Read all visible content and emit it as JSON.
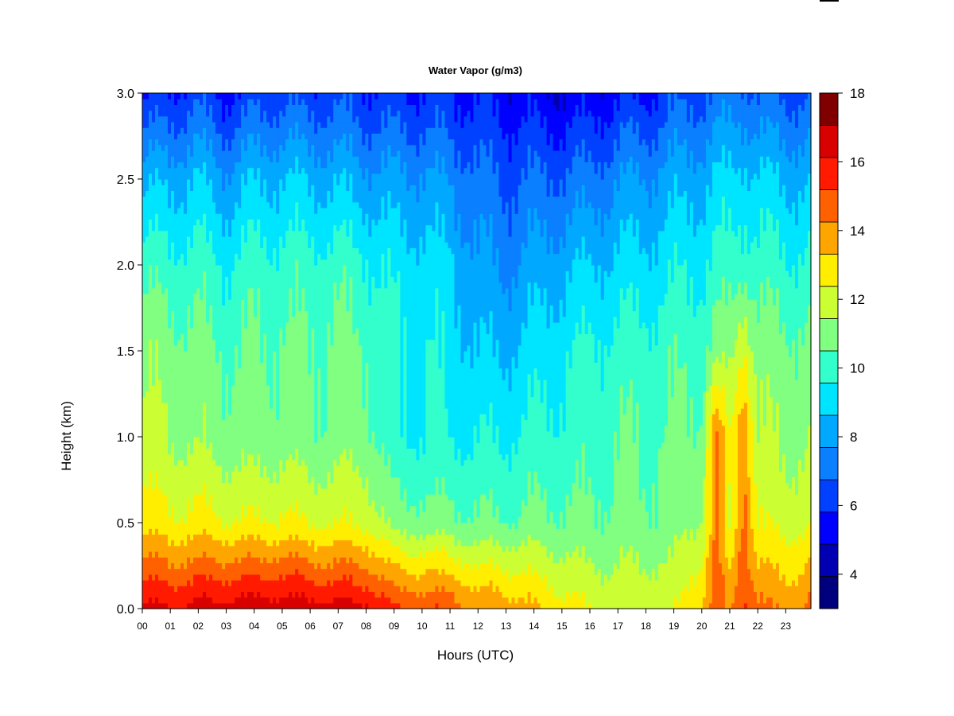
{
  "chart_data": {
    "type": "heatmap",
    "title": "Water Vapor (g/m3)",
    "xlabel": "Hours (UTC)",
    "ylabel": "Height (km)",
    "x_ticks": [
      "00",
      "01",
      "02",
      "03",
      "04",
      "05",
      "06",
      "07",
      "08",
      "09",
      "10",
      "11",
      "12",
      "13",
      "14",
      "15",
      "16",
      "17",
      "18",
      "19",
      "20",
      "21",
      "22",
      "23"
    ],
    "xlim": [
      0,
      23.9
    ],
    "y_ticks": [
      "0.0",
      "0.5",
      "1.0",
      "1.5",
      "2.0",
      "2.5",
      "3.0"
    ],
    "ylim": [
      0,
      3.0
    ],
    "colorbar": {
      "min": 3,
      "max": 18,
      "ticks": [
        "4",
        "6",
        "8",
        "10",
        "12",
        "14",
        "16",
        "18"
      ],
      "colors": [
        "#00007f",
        "#0000b2",
        "#0000ff",
        "#0040ff",
        "#0a7fff",
        "#00a8ff",
        "#00e5ff",
        "#33ffcc",
        "#80ff80",
        "#ccff33",
        "#ffee00",
        "#ffa500",
        "#ff6000",
        "#ff1a00",
        "#d90000",
        "#800000"
      ]
    },
    "profiles": [
      {
        "hour": 0.0,
        "values": [
          16.3,
          13.0,
          11.6,
          11.3,
          10.1,
          8.3,
          5.6
        ]
      },
      {
        "hour": 1.0,
        "values": [
          16.2,
          12.6,
          11.4,
          11.0,
          10.0,
          8.4,
          6.0
        ]
      },
      {
        "hour": 2.0,
        "values": [
          16.4,
          12.7,
          11.2,
          10.8,
          10.0,
          8.6,
          6.3
        ]
      },
      {
        "hour": 3.0,
        "values": [
          16.6,
          12.5,
          11.0,
          10.5,
          9.6,
          8.0,
          5.6
        ]
      },
      {
        "hour": 4.0,
        "values": [
          16.7,
          12.4,
          10.8,
          10.6,
          10.0,
          8.5,
          6.2
        ]
      },
      {
        "hour": 5.0,
        "values": [
          16.8,
          12.6,
          11.0,
          10.7,
          10.0,
          8.7,
          6.4
        ]
      },
      {
        "hour": 6.0,
        "values": [
          16.6,
          12.3,
          10.7,
          10.6,
          10.0,
          8.5,
          6.2
        ]
      },
      {
        "hour": 7.0,
        "values": [
          16.5,
          12.3,
          10.9,
          10.8,
          10.1,
          8.4,
          6.3
        ]
      },
      {
        "hour": 8.0,
        "values": [
          16.4,
          12.2,
          11.0,
          10.6,
          9.8,
          8.1,
          6.0
        ]
      },
      {
        "hour": 9.0,
        "values": [
          15.3,
          11.0,
          9.6,
          9.6,
          9.2,
          7.9,
          5.9
        ]
      },
      {
        "hour": 10.0,
        "values": [
          15.1,
          10.9,
          9.6,
          9.6,
          9.1,
          7.9,
          5.9
        ]
      },
      {
        "hour": 11.0,
        "values": [
          15.0,
          10.8,
          9.5,
          9.3,
          8.8,
          7.6,
          5.8
        ]
      },
      {
        "hour": 12.0,
        "values": [
          14.1,
          10.6,
          9.5,
          8.6,
          7.8,
          7.0,
          5.6
        ]
      },
      {
        "hour": 13.0,
        "values": [
          14.0,
          10.6,
          9.5,
          8.6,
          7.6,
          6.7,
          5.4
        ]
      },
      {
        "hour": 14.0,
        "values": [
          13.4,
          10.7,
          9.8,
          9.0,
          8.0,
          6.8,
          5.2
        ]
      },
      {
        "hour": 15.0,
        "values": [
          12.8,
          10.7,
          9.9,
          9.4,
          8.4,
          6.9,
          5.0
        ]
      },
      {
        "hour": 16.0,
        "values": [
          12.3,
          10.6,
          10.1,
          9.7,
          8.6,
          7.1,
          5.2
        ]
      },
      {
        "hour": 17.0,
        "values": [
          12.1,
          10.8,
          10.5,
          9.9,
          8.9,
          7.6,
          5.6
        ]
      },
      {
        "hour": 18.0,
        "values": [
          12.2,
          10.7,
          10.4,
          10.0,
          9.0,
          7.8,
          5.7
        ]
      },
      {
        "hour": 19.0,
        "values": [
          12.1,
          10.9,
          10.6,
          10.2,
          9.3,
          8.1,
          6.3
        ]
      },
      {
        "hour": 20.0,
        "values": [
          13.5,
          11.6,
          10.8,
          10.3,
          9.5,
          8.4,
          6.6
        ]
      },
      {
        "hour": 20.5,
        "values": [
          15.0,
          14.3,
          14.5,
          10.9,
          9.8,
          8.7,
          6.9
        ]
      },
      {
        "hour": 21.0,
        "values": [
          14.0,
          12.0,
          12.2,
          11.0,
          9.9,
          8.8,
          7.0
        ]
      },
      {
        "hour": 21.5,
        "values": [
          15.5,
          14.8,
          14.6,
          12.6,
          10.3,
          9.1,
          7.2
        ]
      },
      {
        "hour": 22.0,
        "values": [
          14.5,
          12.3,
          11.5,
          11.0,
          10.0,
          8.8,
          6.7
        ]
      },
      {
        "hour": 23.0,
        "values": [
          14.0,
          12.0,
          11.2,
          10.8,
          9.8,
          8.5,
          6.6
        ]
      },
      {
        "hour": 23.9,
        "values": [
          14.5,
          12.2,
          11.3,
          10.8,
          9.8,
          8.5,
          6.6
        ]
      }
    ]
  }
}
